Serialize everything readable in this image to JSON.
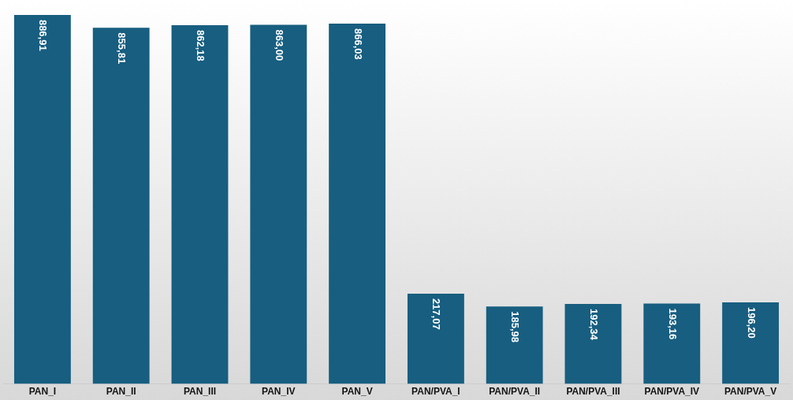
{
  "chart_data": {
    "type": "bar",
    "categories": [
      "PAN_I",
      "PAN_II",
      "PAN_III",
      "PAN_IV",
      "PAN_V",
      "PAN/PVA_I",
      "PAN/PVA_II",
      "PAN/PVA_III",
      "PAN/PVA_IV",
      "PAN/PVA_V"
    ],
    "values": [
      886.91,
      855.81,
      862.18,
      863.0,
      866.03,
      217.07,
      185.98,
      192.34,
      193.16,
      196.2
    ],
    "value_labels": [
      "886,91",
      "855,81",
      "862,18",
      "863,00",
      "866,03",
      "217,07",
      "185,98",
      "192,34",
      "193,16",
      "196,20"
    ],
    "color": "#175e80",
    "grid": false,
    "legend": false
  }
}
